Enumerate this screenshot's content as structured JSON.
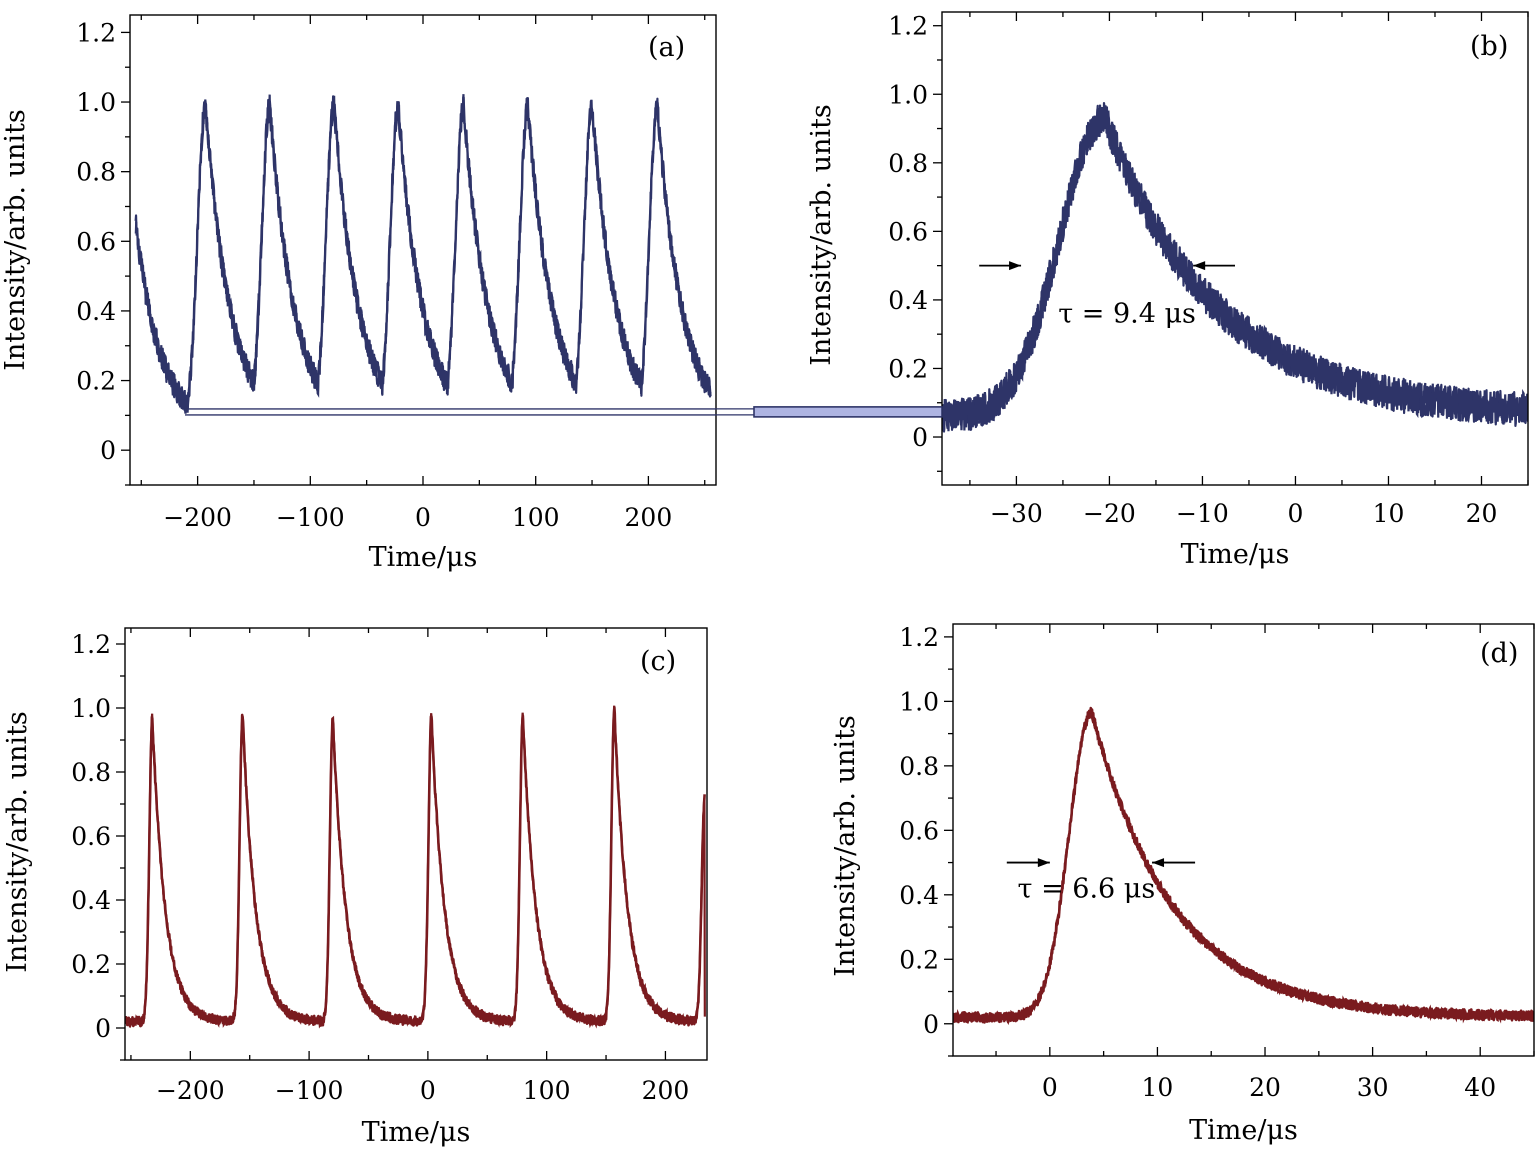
{
  "figure": {
    "connector_color": "#2e3468",
    "connector_fill": "#aeb4e2"
  },
  "chart_data": [
    {
      "panel": "a",
      "type": "line",
      "panel_label": "(a)",
      "xlabel": "Time/μs",
      "ylabel": "Intensity/arb. units",
      "xlim": [
        -260,
        260
      ],
      "ylim": [
        -0.1,
        1.25
      ],
      "xticks": [
        -200,
        -100,
        0,
        100,
        200
      ],
      "xtick_labels": [
        "−200",
        "−100",
        "0",
        "100",
        "200"
      ],
      "yticks": [
        0,
        0.2,
        0.4,
        0.6,
        0.8,
        1.0,
        1.2
      ],
      "ytick_labels": [
        "0",
        "0.2",
        "0.4",
        "0.6",
        "0.8",
        "1.0",
        "1.2"
      ],
      "color": "#2e3468",
      "series_shape": {
        "kind": "pulse_train",
        "peaks_x": [
          -193,
          -136,
          -79,
          -22,
          36,
          93,
          150,
          208
        ],
        "peak_y": 0.99,
        "baseline_y": 0.06,
        "start_x": -255,
        "start_y": 0.65,
        "end_x": 255,
        "rise_us": 10,
        "decay_us": 22,
        "noise_band": 0.035
      },
      "annotation": {
        "kind": "zoom_band",
        "y": 0.11
      }
    },
    {
      "panel": "b",
      "type": "line",
      "panel_label": "(b)",
      "xlabel": "Time/μs",
      "ylabel": "Intensity/arb. units",
      "xlim": [
        -38,
        25
      ],
      "ylim": [
        -0.14,
        1.24
      ],
      "xticks": [
        -30,
        -20,
        -10,
        0,
        10,
        20
      ],
      "xtick_labels": [
        "−30",
        "−20",
        "−10",
        "0",
        "10",
        "20"
      ],
      "yticks": [
        0,
        0.2,
        0.4,
        0.6,
        0.8,
        1.0,
        1.2
      ],
      "ytick_labels": [
        "0",
        "0.2",
        "0.4",
        "0.6",
        "0.8",
        "1.0",
        "1.2"
      ],
      "color": "#2e3468",
      "series_shape": {
        "kind": "single_pulse",
        "peak_x": -20.5,
        "peak_y": 0.93,
        "baseline_y": 0.06,
        "rise_sigma_us": 4.8,
        "decay_us": 12,
        "noise_band": 0.05
      },
      "annotation": {
        "text": "τ = 9.4 μs",
        "y": 0.5,
        "arrow_left_x": [
          -34,
          -29.5
        ],
        "arrow_right_x": [
          -6.5,
          -11
        ],
        "text_x": -25.5,
        "text_y": 0.36
      }
    },
    {
      "panel": "c",
      "type": "line",
      "panel_label": "(c)",
      "xlabel": "Time/μs",
      "ylabel": "Intensity/arb. units",
      "xlim": [
        -255,
        235
      ],
      "ylim": [
        -0.1,
        1.25
      ],
      "xticks": [
        -200,
        -100,
        0,
        100,
        200
      ],
      "xtick_labels": [
        "−200",
        "−100",
        "0",
        "100",
        "200"
      ],
      "yticks": [
        0,
        0.2,
        0.4,
        0.6,
        0.8,
        1.0,
        1.2
      ],
      "ytick_labels": [
        "0",
        "0.2",
        "0.4",
        "0.6",
        "0.8",
        "1.0",
        "1.2"
      ],
      "color": "#7a1b1f",
      "series_shape": {
        "kind": "pulse_train",
        "peaks_x": [
          -232,
          -156,
          -80,
          3,
          80,
          157
        ],
        "peak_values": [
          0.97,
          0.98,
          0.97,
          0.98,
          0.98,
          1.0
        ],
        "baseline_y": 0.02,
        "start_x": -255,
        "end_x": 233,
        "end_y": 0.72,
        "rise_us": 3.5,
        "decay_us": 11,
        "noise_band": 0.015
      }
    },
    {
      "panel": "d",
      "type": "line",
      "panel_label": "(d)",
      "xlabel": "Time/μs",
      "ylabel": "Intensity/arb. units",
      "xlim": [
        -9,
        45
      ],
      "ylim": [
        -0.1,
        1.24
      ],
      "xticks": [
        0,
        10,
        20,
        30,
        40
      ],
      "xtick_labels": [
        "0",
        "10",
        "20",
        "30",
        "40"
      ],
      "yticks": [
        0,
        0.2,
        0.4,
        0.6,
        0.8,
        1.0,
        1.2
      ],
      "ytick_labels": [
        "0",
        "0.2",
        "0.4",
        "0.6",
        "0.8",
        "1.0",
        "1.2"
      ],
      "color": "#7a1b1f",
      "series_shape": {
        "kind": "single_pulse",
        "peak_x": 3.9,
        "peak_y": 0.965,
        "baseline_y": 0.02,
        "rise_sigma_us": 2.1,
        "decay_us": 7.5,
        "noise_band": 0.016
      },
      "annotation": {
        "text": "τ = 6.6 μs",
        "y": 0.5,
        "arrow_left_x": [
          -4,
          0
        ],
        "arrow_right_x": [
          13.5,
          9.5
        ],
        "text_x": -3,
        "text_y": 0.42
      }
    }
  ]
}
